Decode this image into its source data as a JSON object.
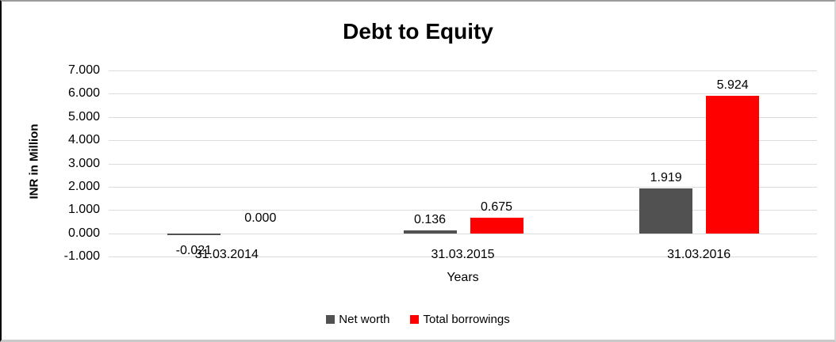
{
  "chart_data": {
    "type": "bar",
    "title": "Debt to Equity",
    "xlabel": "Years",
    "ylabel": "INR in Million",
    "categories": [
      "31.03.2014",
      "31.03.2015",
      "31.03.2016"
    ],
    "series": [
      {
        "name": "Net worth",
        "color": "#515151",
        "values": [
          -0.021,
          0.136,
          1.919
        ],
        "labels": [
          "-0.021",
          "0.136",
          "1.919"
        ]
      },
      {
        "name": "Total borrowings",
        "color": "#ff0000",
        "values": [
          0.0,
          0.675,
          5.924
        ],
        "labels": [
          "0.000",
          "0.675",
          "5.924"
        ]
      }
    ],
    "ylim": [
      -1,
      7
    ],
    "yticks": [
      {
        "value": 7,
        "label": "7.000"
      },
      {
        "value": 6,
        "label": "6.000"
      },
      {
        "value": 5,
        "label": "5.000"
      },
      {
        "value": 4,
        "label": "4.000"
      },
      {
        "value": 3,
        "label": "3.000"
      },
      {
        "value": 2,
        "label": "2.000"
      },
      {
        "value": 1,
        "label": "1.000"
      },
      {
        "value": 0,
        "label": "0.000"
      },
      {
        "value": -1,
        "label": "-1.000"
      }
    ],
    "grid": true,
    "legend_position": "bottom",
    "value_labels": true,
    "colors": {
      "grid": "#dcdcdc",
      "net_worth": "#515151",
      "total_borrowings": "#ff0000",
      "text": "#000000"
    }
  }
}
